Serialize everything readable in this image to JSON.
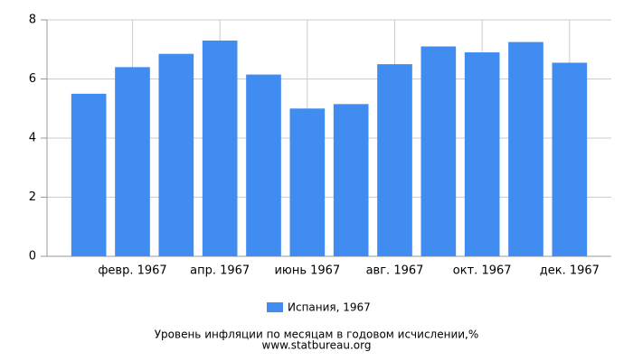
{
  "chart_data": {
    "type": "bar",
    "categories": [
      null,
      "февр. 1967",
      null,
      "апр. 1967",
      null,
      "июнь 1967",
      null,
      "авг. 1967",
      null,
      "окт. 1967",
      null,
      "дек. 1967"
    ],
    "series": [
      {
        "name": "Испания, 1967",
        "color": "#418cf0",
        "values": [
          5.5,
          6.4,
          6.85,
          7.3,
          6.15,
          5.0,
          5.15,
          6.5,
          7.1,
          6.9,
          7.25,
          6.55
        ]
      }
    ],
    "ylim": [
      0,
      8
    ],
    "yticks": [
      0,
      2,
      4,
      6,
      8
    ],
    "grid": true,
    "legend": "bottom",
    "title": "Уровень инфляции по месяцам в годовом исчислении,%",
    "source": "www.statbureau.org"
  }
}
